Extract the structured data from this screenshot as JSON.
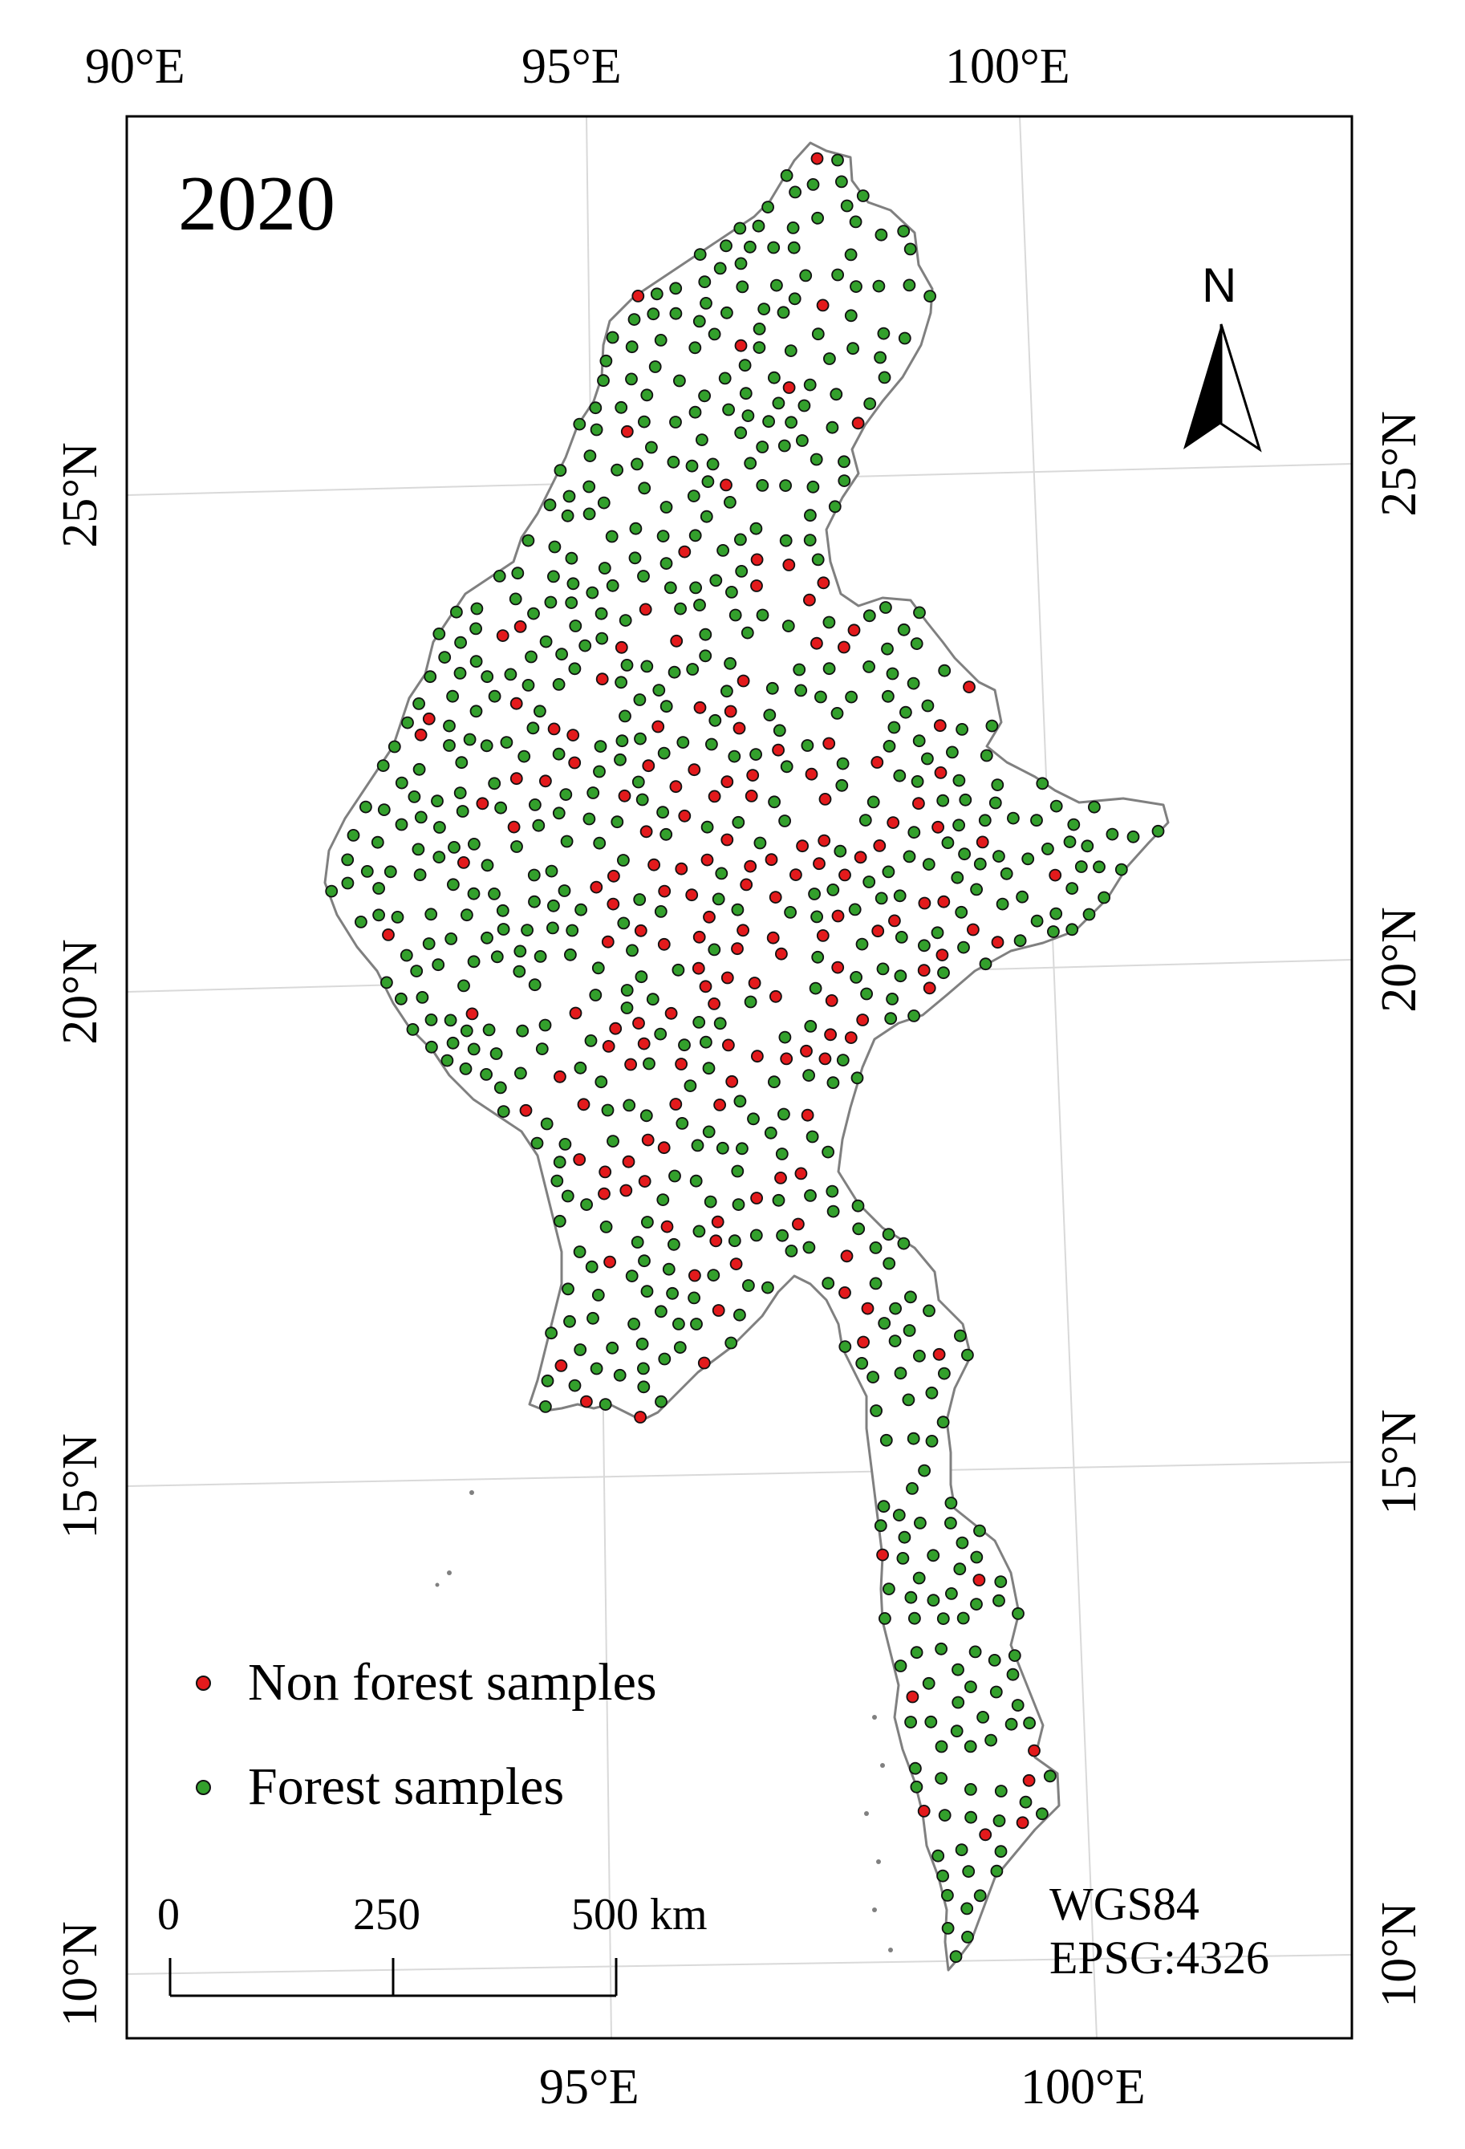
{
  "map": {
    "year_label": "2020",
    "top_axis_labels": [
      "90°E",
      "95°E",
      "100°E"
    ],
    "bottom_axis_labels": [
      "95°E",
      "100°E"
    ],
    "left_axis_labels": [
      "25°N",
      "20°N",
      "15°N",
      "10°N"
    ],
    "right_axis_labels": [
      "25°N",
      "20°N",
      "15°N",
      "10°N"
    ],
    "north_arrow_label": "N",
    "crs": {
      "datum": "WGS84",
      "code": "EPSG:4326"
    },
    "scale_bar": {
      "tick_labels": [
        "0",
        "250",
        "500 km"
      ]
    },
    "legend": [
      {
        "label": "Non forest samples",
        "color": "#e31a1c"
      },
      {
        "label": "Forest samples",
        "color": "#33a02c"
      }
    ],
    "colors": {
      "non_forest": "#e31a1c",
      "forest": "#33a02c",
      "boundary": "#808080",
      "graticule": "#d9d9d9",
      "frame": "#000000"
    }
  }
}
